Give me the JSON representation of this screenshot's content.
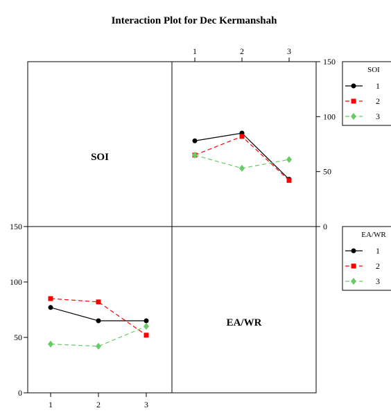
{
  "chart_data": {
    "type": "line",
    "title": "Interaction Plot for Dec Kermanshah",
    "x": [
      "1",
      "2",
      "3"
    ],
    "ylim": [
      0,
      150
    ],
    "yticks": [
      "0",
      "50",
      "100",
      "150"
    ],
    "diagonal_labels": [
      "SOI",
      "EA/WR"
    ],
    "panels": [
      {
        "id": "top-right",
        "factor_on_x": "EA/WR",
        "legend_title": "SOI",
        "series": [
          {
            "name": "1",
            "values": [
              78,
              85,
              43
            ],
            "color": "#000000",
            "marker": "circle",
            "dash": "solid"
          },
          {
            "name": "2",
            "values": [
              65,
              82,
              42
            ],
            "color": "#ff0000",
            "marker": "square",
            "dash": "dashed"
          },
          {
            "name": "3",
            "values": [
              65,
              53,
              61
            ],
            "color": "#66cc66",
            "marker": "diamond",
            "dash": "dashed"
          }
        ]
      },
      {
        "id": "bottom-left",
        "factor_on_x": "SOI",
        "legend_title": "EA/WR",
        "series": [
          {
            "name": "1",
            "values": [
              77,
              65,
              65
            ],
            "color": "#000000",
            "marker": "circle",
            "dash": "solid"
          },
          {
            "name": "2",
            "values": [
              85,
              82,
              52
            ],
            "color": "#ff0000",
            "marker": "square",
            "dash": "dashed"
          },
          {
            "name": "3",
            "values": [
              44,
              42,
              60
            ],
            "color": "#66cc66",
            "marker": "diamond",
            "dash": "dashed"
          }
        ]
      }
    ]
  }
}
